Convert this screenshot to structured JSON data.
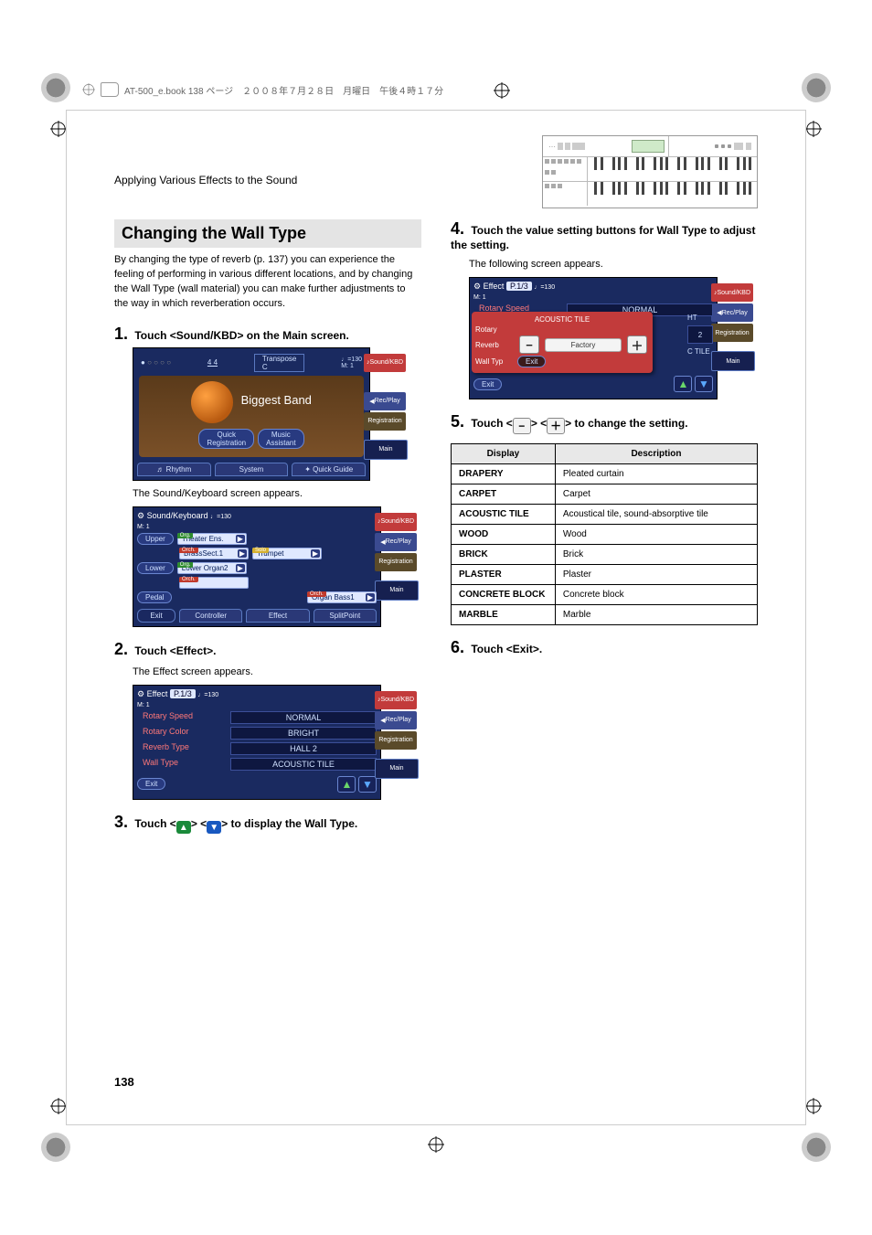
{
  "book_header": "AT-500_e.book  138 ページ　２００８年７月２８日　月曜日　午後４時１７分",
  "breadcrumb": "Applying Various Effects to the Sound",
  "page_number": "138",
  "heading": "Changing the Wall Type",
  "intro_para": "By changing the type of reverb (p. 137) you can experience the feeling of performing in various different locations, and by changing the Wall Type (wall material) you can make further adjustments to the way in which reverberation occurs.",
  "steps": {
    "s1": "Touch <Sound/KBD> on the Main screen.",
    "s1_caption": "The Sound/Keyboard screen appears.",
    "s2": "Touch <Effect>.",
    "s2_caption": "The Effect screen appears.",
    "s3_pre": "Touch <",
    "s3_mid": "> <",
    "s3_post": "> to display the Wall Type.",
    "s4": "Touch the value setting buttons for Wall Type to adjust the setting.",
    "s4_caption": "The following screen appears.",
    "s5_pre": "Touch <",
    "s5_mid": "> <",
    "s5_post": "> to change the setting.",
    "s6": "Touch <Exit>."
  },
  "side_tabs": {
    "sound": "Sound/KBD",
    "rec": "Rec/Play",
    "reg": "Registration",
    "main": "Main"
  },
  "main_shot": {
    "transpose_label": "Transpose",
    "transpose_val": "C",
    "tempo_icon": "♩=130",
    "tempo_sub": "M:     1",
    "timesig": "4\n4",
    "band": "Biggest Band",
    "quick_reg": "Quick\nRegistration",
    "music_asst": "Music\nAssistant",
    "rhythm": "Rhythm",
    "system": "System",
    "quick_guide": "Quick Guide"
  },
  "sound_kbd": {
    "title": "Sound/Keyboard",
    "upper": "Upper",
    "lower": "Lower",
    "pedal": "Pedal",
    "exit": "Exit",
    "controller": "Controller",
    "effect": "Effect",
    "split": "SplitPoint",
    "voices": {
      "upper_org": "Theater Ens.",
      "upper_org_tag": "Org.",
      "upper_orch": "BrassSect.1",
      "upper_orch_tag": "Orch.",
      "upper_solo": "Trumpet",
      "upper_solo_tag": "Solo",
      "lower_org": "Lower Organ2",
      "lower_org_tag": "Org.",
      "lower_orch": "",
      "lower_orch_tag": "Orch.",
      "pedal_orch": "Organ Bass1",
      "pedal_orch_tag": "Orch."
    }
  },
  "effect_shot": {
    "title": "Effect",
    "page": "P.1/3",
    "rows": [
      {
        "label": "Rotary Speed",
        "val": "NORMAL"
      },
      {
        "label": "Rotary Color",
        "val": "BRIGHT"
      },
      {
        "label": "Reverb Type",
        "val": "HALL 2"
      },
      {
        "label": "Wall Type",
        "val": "ACOUSTIC TILE"
      }
    ],
    "exit": "Exit"
  },
  "effect_popup": {
    "title": "Effect",
    "page": "P.1/3",
    "rotary_speed": "Rotary Speed",
    "rotary": "Rotary",
    "reverb": "Reverb",
    "wall_typ": "Wall Typ",
    "exit_inner": "Exit",
    "exit": "Exit",
    "normal": "NORMAL",
    "acoustic": "ACOUSTIC TILE",
    "ht": "HT",
    "factory": "Factory",
    "digit": "2",
    "ctile": "C TILE"
  },
  "table": {
    "head_display": "Display",
    "head_desc": "Description",
    "rows": [
      {
        "d": "DRAPERY",
        "v": "Pleated curtain"
      },
      {
        "d": "CARPET",
        "v": "Carpet"
      },
      {
        "d": "ACOUSTIC TILE",
        "v": "Acoustical tile, sound-absorptive tile"
      },
      {
        "d": "WOOD",
        "v": "Wood"
      },
      {
        "d": "BRICK",
        "v": "Brick"
      },
      {
        "d": "PLASTER",
        "v": "Plaster"
      },
      {
        "d": "CONCRETE BLOCK",
        "v": "Concrete block"
      },
      {
        "d": "MARBLE",
        "v": "Marble"
      }
    ]
  },
  "colors": {
    "panel_bg": "#1a2a60",
    "red_tab": "#c23b3b",
    "main_tab": "#162050",
    "tri_up": "#1a8a3a",
    "tri_down": "#1858c0"
  }
}
